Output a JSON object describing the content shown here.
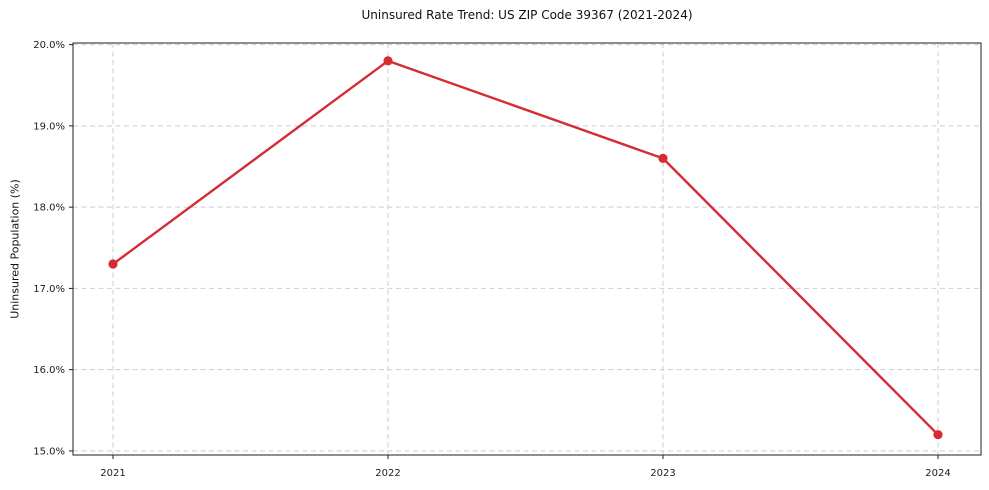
{
  "chart_data": {
    "type": "line",
    "title": "Uninsured Rate Trend: US ZIP Code 39367 (2021-2024)",
    "xlabel": "",
    "ylabel": "Uninsured Population (%)",
    "categories": [
      "2021",
      "2022",
      "2023",
      "2024"
    ],
    "values": [
      17.3,
      19.8,
      18.6,
      15.2
    ],
    "ylim": [
      15.0,
      20.0
    ],
    "yticks": [
      15.0,
      16.0,
      17.0,
      18.0,
      19.0,
      20.0
    ],
    "ytick_labels": [
      "15.0%",
      "16.0%",
      "17.0%",
      "18.0%",
      "19.0%",
      "20.0%"
    ],
    "line_color": "#d62b33",
    "marker": "circle",
    "grid": "dashed",
    "legend": "none"
  }
}
